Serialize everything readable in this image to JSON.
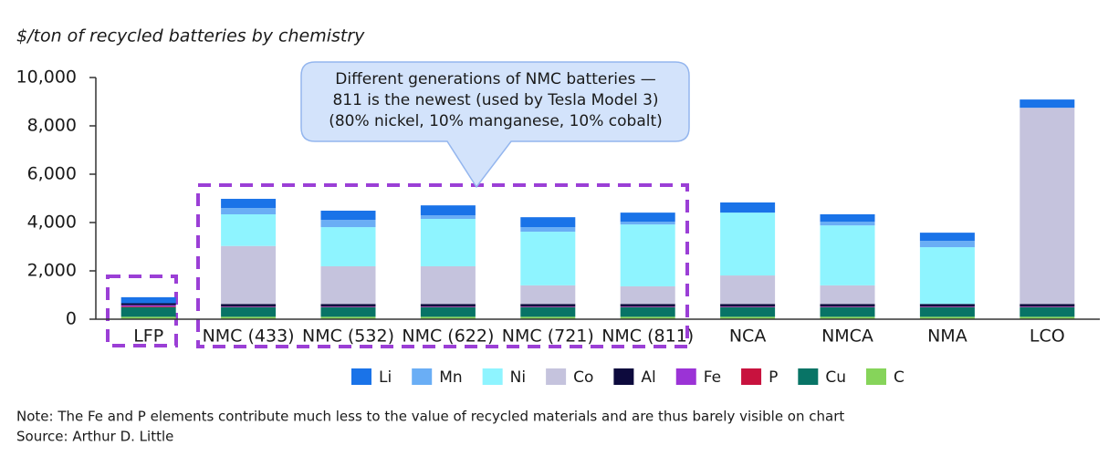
{
  "chart_data": {
    "type": "stacked_bar",
    "y_axis_title": "$/ton of recycled batteries by chemistry",
    "categories": [
      "LFP",
      "NMC (433)",
      "NMC (532)",
      "NMC (622)",
      "NMC (721)",
      "NMC (811)",
      "NCA",
      "NMCA",
      "NMA",
      "LCO"
    ],
    "series": [
      {
        "name": "Li",
        "color": "#1a73e8",
        "values": [
          250,
          380,
          380,
          410,
          410,
          380,
          420,
          310,
          340,
          340
        ]
      },
      {
        "name": "Mn",
        "color": "#6aaef5",
        "values": [
          0,
          260,
          300,
          150,
          190,
          110,
          0,
          150,
          260,
          0
        ]
      },
      {
        "name": "Ni",
        "color": "#8ef4ff",
        "values": [
          0,
          1310,
          1620,
          1960,
          2220,
          2560,
          2600,
          2480,
          2350,
          0
        ]
      },
      {
        "name": "Co",
        "color": "#c5c3dd",
        "values": [
          0,
          2400,
          1560,
          1560,
          770,
          730,
          1180,
          770,
          0,
          8120
        ]
      },
      {
        "name": "Al",
        "color": "#0d0a3d",
        "values": [
          80,
          100,
          100,
          100,
          100,
          100,
          100,
          100,
          100,
          100
        ]
      },
      {
        "name": "Fe",
        "color": "#9b33d6",
        "values": [
          50,
          20,
          20,
          20,
          20,
          20,
          20,
          20,
          20,
          20
        ]
      },
      {
        "name": "P",
        "color": "#c8123e",
        "values": [
          30,
          10,
          10,
          10,
          10,
          10,
          10,
          10,
          10,
          10
        ]
      },
      {
        "name": "Cu",
        "color": "#087466",
        "values": [
          400,
          400,
          400,
          400,
          400,
          400,
          400,
          400,
          400,
          400
        ]
      },
      {
        "name": "C",
        "color": "#86d45a",
        "values": [
          100,
          100,
          100,
          100,
          100,
          100,
          100,
          100,
          100,
          100
        ]
      }
    ],
    "ylim": [
      0,
      10000
    ],
    "yticks": [
      0,
      {
        "value": 2000,
        "label": "2,000"
      },
      {
        "value": 4000,
        "label": "4,000"
      },
      {
        "value": 6000,
        "label": "6,000"
      },
      {
        "value": 8000,
        "label": "8,000"
      },
      {
        "value": 10000,
        "label": "10,000"
      }
    ],
    "annotation": [
      "Different generations of NMC batteries —",
      "811 is the newest (used by Tesla Model 3)",
      "(80% nickel, 10% manganese, 10% cobalt)"
    ],
    "note": "Note: The Fe and P elements contribute much less to the value of recycled materials and are thus barely visible on chart",
    "source": "Source: Arthur D. Little"
  }
}
